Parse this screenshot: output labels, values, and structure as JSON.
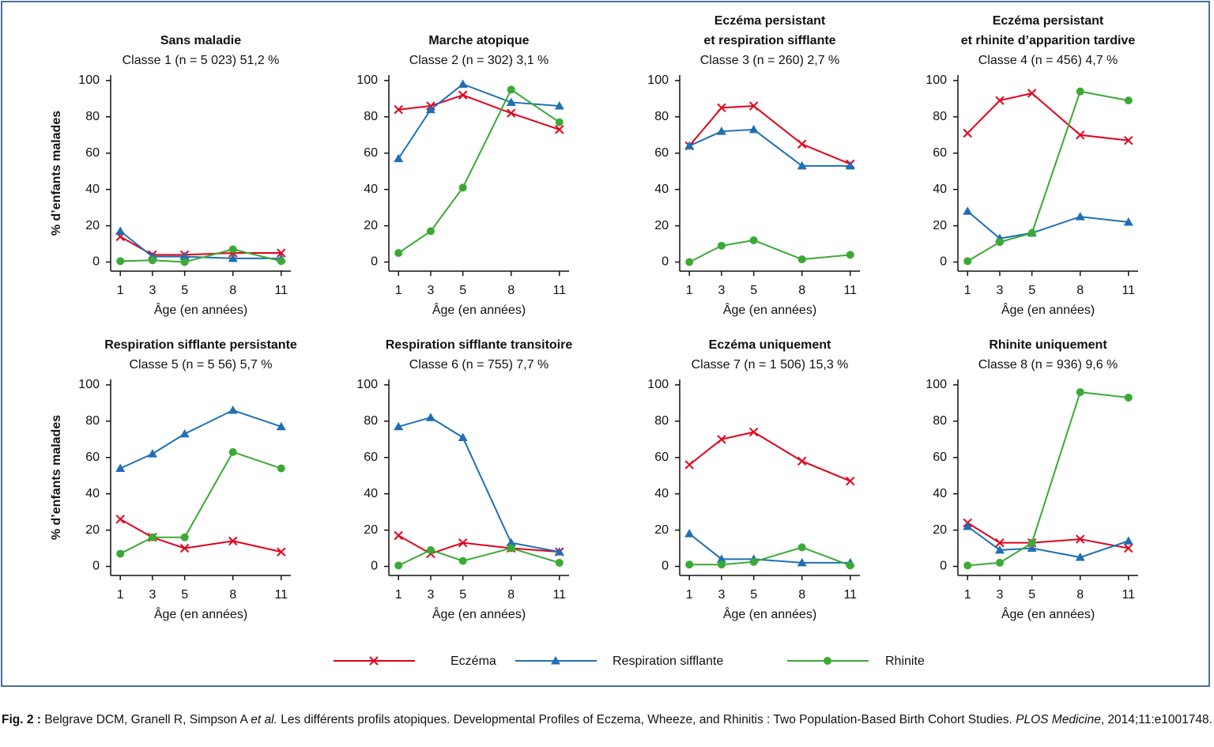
{
  "chart_data": [
    {
      "type": "line",
      "title": [
        "Sans maladie"
      ],
      "subtitle": "Classe 1 (n = 5 023) 51,2 %",
      "ylabel": "% d’enfants malades",
      "xlabel": "Âge (en années)",
      "x": [
        1,
        3,
        5,
        8,
        11
      ],
      "xlim": [
        0.4,
        11.6
      ],
      "xticks": [
        1,
        3,
        5,
        8,
        11
      ],
      "ylim": [
        -5,
        103
      ],
      "yticks": [
        0,
        20,
        40,
        60,
        80,
        100
      ],
      "series": [
        {
          "color": "#e2001a",
          "marker": "x",
          "values": [
            14,
            4,
            4,
            5,
            5
          ]
        },
        {
          "color": "#1f6fb5",
          "marker": "triangle",
          "values": [
            17,
            3,
            3,
            2,
            2
          ]
        },
        {
          "color": "#3aaa35",
          "marker": "circle",
          "values": [
            0.5,
            1,
            0,
            7,
            0.5
          ]
        }
      ]
    },
    {
      "type": "line",
      "title": [
        "Marche atopique"
      ],
      "subtitle": "Classe 2 (n = 302) 3,1 %",
      "xlabel": "Âge (en années)",
      "x": [
        1,
        3,
        5,
        8,
        11
      ],
      "xlim": [
        0.4,
        11.6
      ],
      "xticks": [
        1,
        3,
        5,
        8,
        11
      ],
      "ylim": [
        -5,
        103
      ],
      "yticks": [
        0,
        20,
        40,
        60,
        80,
        100
      ],
      "series": [
        {
          "color": "#e2001a",
          "marker": "x",
          "values": [
            84,
            86,
            92,
            82,
            73
          ]
        },
        {
          "color": "#1f6fb5",
          "marker": "triangle",
          "values": [
            57,
            84,
            98,
            88,
            86
          ]
        },
        {
          "color": "#3aaa35",
          "marker": "circle",
          "values": [
            5,
            17,
            41,
            95,
            77
          ]
        }
      ]
    },
    {
      "type": "line",
      "title": [
        "Eczéma persistant",
        "et respiration sifflante"
      ],
      "subtitle": "Classe 3 (n = 260) 2,7 %",
      "xlabel": "Âge (en années)",
      "x": [
        1,
        3,
        5,
        8,
        11
      ],
      "xlim": [
        0.4,
        11.6
      ],
      "xticks": [
        1,
        3,
        5,
        8,
        11
      ],
      "ylim": [
        -5,
        103
      ],
      "yticks": [
        0,
        20,
        40,
        60,
        80,
        100
      ],
      "series": [
        {
          "color": "#e2001a",
          "marker": "x",
          "values": [
            64,
            85,
            86,
            65,
            54
          ]
        },
        {
          "color": "#1f6fb5",
          "marker": "triangle",
          "values": [
            64,
            72,
            73,
            53,
            53
          ]
        },
        {
          "color": "#3aaa35",
          "marker": "circle",
          "values": [
            0,
            9,
            12,
            1.5,
            4
          ]
        }
      ]
    },
    {
      "type": "line",
      "title": [
        "Eczéma persistant",
        "et rhinite d’apparition tardive"
      ],
      "subtitle": "Classe 4 (n = 456) 4,7 %",
      "xlabel": "Âge (en années)",
      "x": [
        1,
        3,
        5,
        8,
        11
      ],
      "xlim": [
        0.4,
        11.6
      ],
      "xticks": [
        1,
        3,
        5,
        8,
        11
      ],
      "ylim": [
        -5,
        103
      ],
      "yticks": [
        0,
        20,
        40,
        60,
        80,
        100
      ],
      "series": [
        {
          "color": "#e2001a",
          "marker": "x",
          "values": [
            71,
            89,
            93,
            70,
            67
          ]
        },
        {
          "color": "#1f6fb5",
          "marker": "triangle",
          "values": [
            28,
            13,
            16,
            25,
            22
          ]
        },
        {
          "color": "#3aaa35",
          "marker": "circle",
          "values": [
            0.5,
            11,
            16,
            94,
            89
          ]
        }
      ]
    },
    {
      "type": "line",
      "title": [
        "Respiration sifflante persistante"
      ],
      "subtitle": "Classe 5 (n = 5 56) 5,7 %",
      "ylabel": "% d’enfants malades",
      "xlabel": "Âge (en années)",
      "x": [
        1,
        3,
        5,
        8,
        11
      ],
      "xlim": [
        0.4,
        11.6
      ],
      "xticks": [
        1,
        3,
        5,
        8,
        11
      ],
      "ylim": [
        -5,
        103
      ],
      "yticks": [
        0,
        20,
        40,
        60,
        80,
        100
      ],
      "series": [
        {
          "color": "#e2001a",
          "marker": "x",
          "values": [
            26,
            16,
            10,
            14,
            8
          ]
        },
        {
          "color": "#1f6fb5",
          "marker": "triangle",
          "values": [
            54,
            62,
            73,
            86,
            77
          ]
        },
        {
          "color": "#3aaa35",
          "marker": "circle",
          "values": [
            7,
            16,
            16,
            63,
            54
          ]
        }
      ]
    },
    {
      "type": "line",
      "title": [
        "Respiration sifflante transitoire"
      ],
      "subtitle": "Classe 6 (n = 755) 7,7 %",
      "xlabel": "Âge (en années)",
      "x": [
        1,
        3,
        5,
        8,
        11
      ],
      "xlim": [
        0.4,
        11.6
      ],
      "xticks": [
        1,
        3,
        5,
        8,
        11
      ],
      "ylim": [
        -5,
        103
      ],
      "yticks": [
        0,
        20,
        40,
        60,
        80,
        100
      ],
      "series": [
        {
          "color": "#e2001a",
          "marker": "x",
          "values": [
            17,
            7,
            13,
            10,
            8
          ]
        },
        {
          "color": "#1f6fb5",
          "marker": "triangle",
          "values": [
            77,
            82,
            71,
            13,
            8
          ]
        },
        {
          "color": "#3aaa35",
          "marker": "circle",
          "values": [
            0.5,
            9,
            3,
            10,
            2
          ]
        }
      ]
    },
    {
      "type": "line",
      "title": [
        "Eczéma uniquement"
      ],
      "subtitle": "Classe 7 (n = 1 506) 15,3 %",
      "xlabel": "Âge (en années)",
      "x": [
        1,
        3,
        5,
        8,
        11
      ],
      "xlim": [
        0.4,
        11.6
      ],
      "xticks": [
        1,
        3,
        5,
        8,
        11
      ],
      "ylim": [
        -5,
        103
      ],
      "yticks": [
        0,
        20,
        40,
        60,
        80,
        100
      ],
      "series": [
        {
          "color": "#e2001a",
          "marker": "x",
          "values": [
            56,
            70,
            74,
            58,
            47
          ]
        },
        {
          "color": "#1f6fb5",
          "marker": "triangle",
          "values": [
            18,
            4,
            4,
            2,
            2
          ]
        },
        {
          "color": "#3aaa35",
          "marker": "circle",
          "values": [
            1,
            1,
            2.5,
            10.5,
            0.5
          ]
        }
      ]
    },
    {
      "type": "line",
      "title": [
        "Rhinite uniquement"
      ],
      "subtitle": "Classe 8 (n = 936) 9,6 %",
      "xlabel": "Âge (en années)",
      "x": [
        1,
        3,
        5,
        8,
        11
      ],
      "xlim": [
        0.4,
        11.6
      ],
      "xticks": [
        1,
        3,
        5,
        8,
        11
      ],
      "ylim": [
        -5,
        103
      ],
      "yticks": [
        0,
        20,
        40,
        60,
        80,
        100
      ],
      "series": [
        {
          "color": "#e2001a",
          "marker": "x",
          "values": [
            24,
            13,
            13,
            15,
            10
          ]
        },
        {
          "color": "#1f6fb5",
          "marker": "triangle",
          "values": [
            22,
            9,
            10,
            5,
            14
          ]
        },
        {
          "color": "#3aaa35",
          "marker": "circle",
          "values": [
            0.5,
            2,
            13,
            96,
            93
          ]
        }
      ]
    }
  ],
  "legend": [
    {
      "name": "Eczéma",
      "color": "#e2001a",
      "marker": "x"
    },
    {
      "name": "Respiration sifflante",
      "color": "#1f6fb5",
      "marker": "triangle"
    },
    {
      "name": "Rhinite",
      "color": "#3aaa35",
      "marker": "circle"
    }
  ],
  "caption": [
    "Fig. 2 :",
    " Belgrave DCM, Granell R, Simpson A ",
    "et al.",
    " Les différents profils atopiques. Developmental Profiles of Eczema, Wheeze, and Rhinitis : Two Population-Based Birth Cohort Studies. ",
    "PLOS Medicine",
    ", 2014;11:e1001748."
  ]
}
